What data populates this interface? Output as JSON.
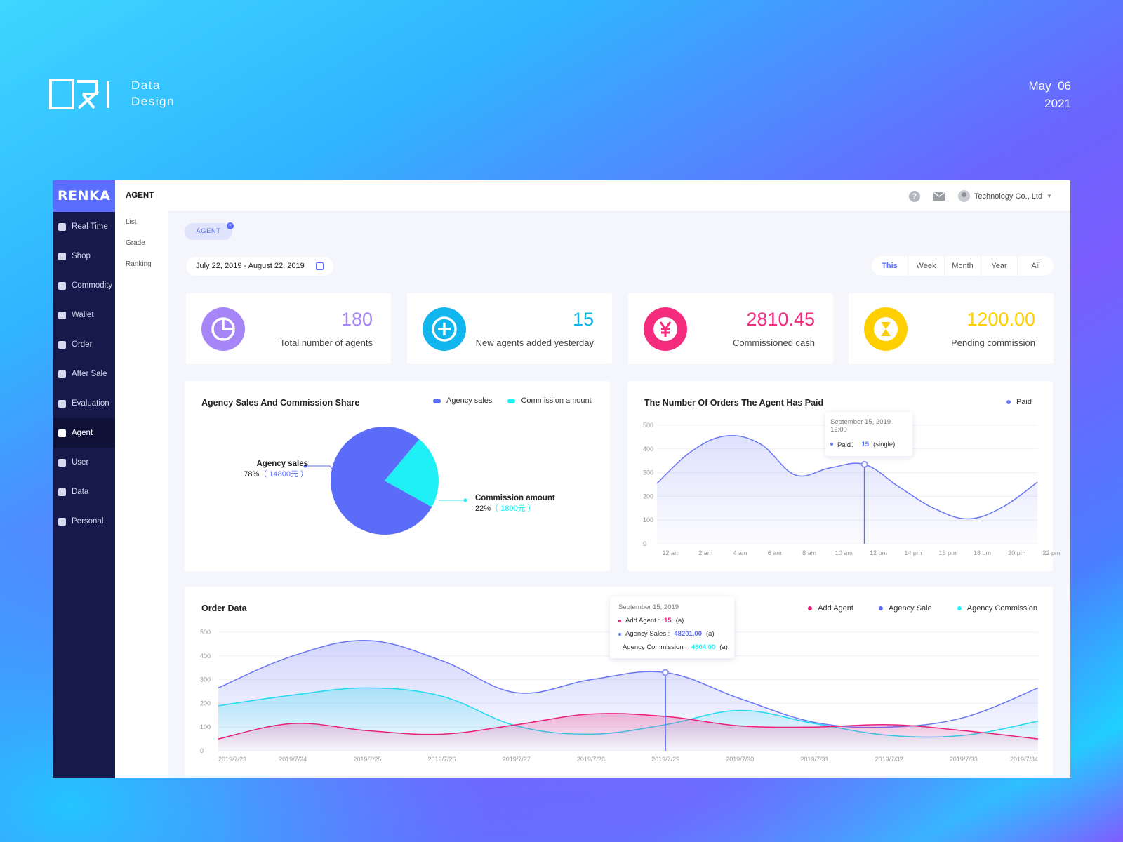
{
  "brand": {
    "line1": "Data",
    "line2": "Design",
    "date_line1": "May  06",
    "date_line2": "2021"
  },
  "sidebar": {
    "logo": "RENKA",
    "items": [
      {
        "label": "Real Time",
        "icon": "clock-icon"
      },
      {
        "label": "Shop",
        "icon": "shop-icon"
      },
      {
        "label": "Commodity",
        "icon": "commodity-icon"
      },
      {
        "label": "Wallet",
        "icon": "wallet-icon"
      },
      {
        "label": "Order",
        "icon": "order-icon"
      },
      {
        "label": "After Sale",
        "icon": "shield-icon"
      },
      {
        "label": "Evaluation",
        "icon": "evaluation-icon"
      },
      {
        "label": "Agent",
        "icon": "agent-icon",
        "active": true
      },
      {
        "label": "User",
        "icon": "user-icon"
      },
      {
        "label": "Data",
        "icon": "pie-icon"
      },
      {
        "label": "Personal",
        "icon": "person-icon"
      }
    ]
  },
  "subnav": {
    "title": "AGENT",
    "items": [
      "List",
      "Grade",
      "Ranking"
    ]
  },
  "topbar": {
    "company": "Technology Co., Ltd",
    "help": "?"
  },
  "filter": {
    "chip": "AGENT",
    "chip_close": "×",
    "date_range": "July 22, 2019 - August 22, 2019",
    "periods": [
      "This",
      "Week",
      "Month",
      "Year",
      "Aii"
    ],
    "active_period": "This"
  },
  "stats": [
    {
      "value": "180",
      "label": "Total number of agents",
      "color": "#a685f7",
      "icon": "pie-icon"
    },
    {
      "value": "15",
      "label": "New agents added yesterday",
      "color": "#12b6ee",
      "icon": "plus-icon"
    },
    {
      "value": "2810.45",
      "label": "Commissioned cash",
      "color": "#f52b7e",
      "icon": "yen-icon"
    },
    {
      "value": "1200.00",
      "label": "Pending commission",
      "color": "#ffcf00",
      "icon": "hourglass-icon"
    }
  ],
  "share": {
    "title": "Agency Sales And Commission Share",
    "legend": [
      "Agency sales",
      "Commission amount"
    ],
    "sales": {
      "name": "Agency sales",
      "pct": "78%",
      "amount": "（ 14800元 ）"
    },
    "commission": {
      "name": "Commission amount",
      "pct": "22%",
      "amount": "（ 1800元 ）"
    }
  },
  "paid": {
    "title": "The Number Of Orders The Agent Has Paid",
    "legend": "Paid",
    "tooltip": {
      "title": "September 15, 2019 12:00",
      "label": "Paid：",
      "value": "15",
      "unit": "(single)"
    }
  },
  "order": {
    "title": "Order Data",
    "legend": [
      "Add Agent",
      "Agency Sale",
      "Agency Commission"
    ],
    "tooltip": {
      "title": "September 15, 2019",
      "rows": [
        {
          "label": "Add Agent :",
          "value": "15",
          "unit": "(a)"
        },
        {
          "label": "Agency Sales :",
          "value": "48201.00",
          "unit": "(a)"
        },
        {
          "label": "Agency Commission :",
          "value": "4804.00",
          "unit": "(a)"
        }
      ]
    }
  },
  "chart_data": [
    {
      "type": "pie",
      "title": "Agency Sales And Commission Share",
      "categories": [
        "Agency sales",
        "Commission amount"
      ],
      "values": [
        78,
        22
      ],
      "colors": [
        "#5b6cf8",
        "#1ff0f5"
      ]
    },
    {
      "type": "area",
      "title": "The Number Of Orders The Agent Has Paid",
      "x": [
        "12 am",
        "2 am",
        "4 am",
        "6 am",
        "8 am",
        "10 am",
        "12 pm",
        "14 pm",
        "16 pm",
        "18 pm",
        "20 pm",
        "22 pm"
      ],
      "yticks": [
        0,
        100,
        200,
        300,
        400,
        500
      ],
      "ylim": [
        0,
        500
      ],
      "series": [
        {
          "name": "Paid",
          "color": "#6a76f4",
          "values": [
            255,
            390,
            455,
            420,
            290,
            320,
            335,
            240,
            150,
            105,
            155,
            260
          ]
        }
      ]
    },
    {
      "type": "area",
      "title": "Order Data",
      "x": [
        "2019/7/23",
        "2019/7/24",
        "2019/7/25",
        "2019/7/26",
        "2019/7/27",
        "2019/7/28",
        "2019/7/29",
        "2019/7/30",
        "2019/7/31",
        "2019/7/32",
        "2019/7/33",
        "2019/7/34"
      ],
      "yticks": [
        0,
        100,
        200,
        300,
        400,
        500
      ],
      "ylim": [
        0,
        500
      ],
      "series": [
        {
          "name": "Agency Sale",
          "color": "#6a76f4",
          "values": [
            265,
            400,
            465,
            380,
            245,
            300,
            330,
            220,
            120,
            100,
            140,
            265
          ]
        },
        {
          "name": "Agency Commission",
          "color": "#22d8f0",
          "values": [
            190,
            235,
            265,
            230,
            105,
            70,
            110,
            170,
            115,
            65,
            65,
            125
          ]
        },
        {
          "name": "Add Agent",
          "color": "#e8207a",
          "values": [
            50,
            115,
            85,
            70,
            110,
            155,
            145,
            105,
            100,
            110,
            85,
            50
          ]
        }
      ]
    }
  ]
}
